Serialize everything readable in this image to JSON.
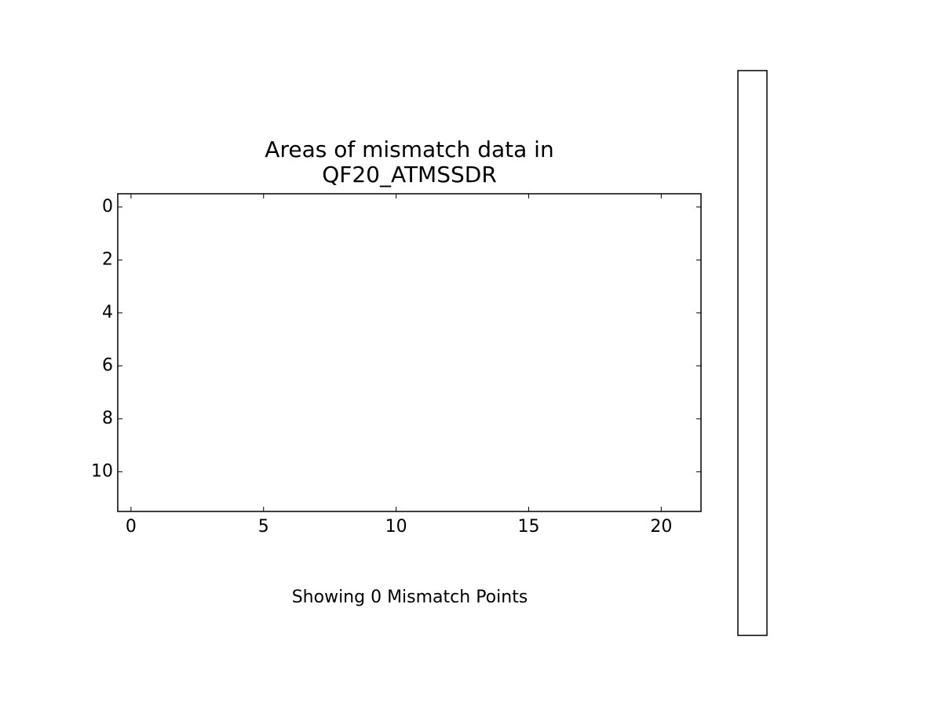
{
  "chart_data": {
    "type": "image",
    "title": "Areas of mismatch data in\nQF20_ATMSSDR",
    "xlabel": "Showing 0 Mismatch Points",
    "xlim": [
      -0.5,
      21.5
    ],
    "ylim": [
      11.5,
      -0.5
    ],
    "xticks": [
      0,
      5,
      10,
      15,
      20
    ],
    "yticks": [
      0,
      2,
      4,
      6,
      8,
      10
    ]
  }
}
